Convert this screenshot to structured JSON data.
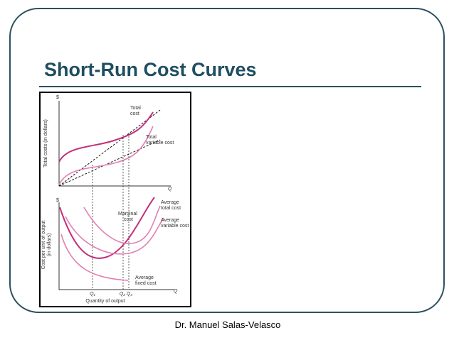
{
  "header": {
    "title": "Short-Run Cost Curves"
  },
  "figure": {
    "top_panel": {
      "y_symbol": "$",
      "y_axis_label": "Total costs (in dollars)",
      "x_symbol": "Q",
      "curves": [
        {
          "label": [
            "Total",
            "cost"
          ]
        },
        {
          "label": [
            "Total",
            "variable cost"
          ]
        }
      ]
    },
    "bottom_panel": {
      "y_symbol": "$",
      "y_axis_label": [
        "Cost per unit of output",
        "(in dollars)"
      ],
      "x_symbol": "Q",
      "x_axis_label": "Quantity of output",
      "quantity_marks": [
        "Q₁",
        "Q₂ Q₃"
      ],
      "curves": [
        {
          "label": [
            "Marginal",
            "cost"
          ]
        },
        {
          "label": [
            "Average",
            "total cost"
          ]
        },
        {
          "label": [
            "Average",
            "variable cost"
          ]
        },
        {
          "label": [
            "Average",
            "fixed cost"
          ]
        }
      ]
    }
  },
  "footer": {
    "author": "Dr. Manuel Salas-Velasco"
  }
}
